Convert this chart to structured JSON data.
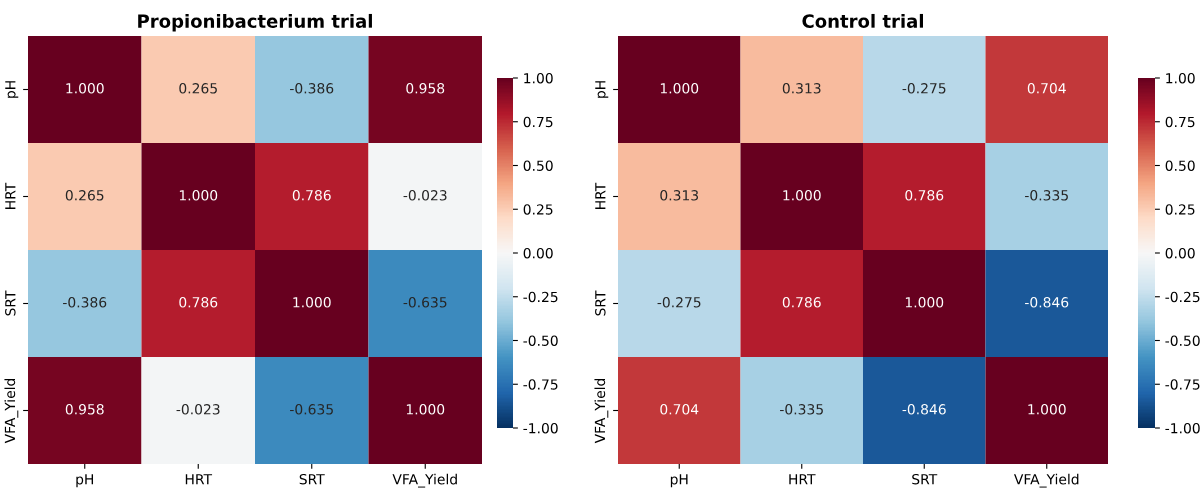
{
  "chart_data": [
    {
      "type": "heatmap",
      "title": "Propionibacterium trial",
      "categories": [
        "pH",
        "HRT",
        "SRT",
        "VFA_Yield"
      ],
      "y_categories": [
        "pH",
        "HRT",
        "SRT",
        "VFA_Yield"
      ],
      "cells": [
        [
          1.0,
          0.265,
          -0.386,
          0.958
        ],
        [
          0.265,
          1.0,
          0.786,
          -0.023
        ],
        [
          -0.386,
          0.786,
          1.0,
          -0.635
        ],
        [
          0.958,
          -0.023,
          -0.635,
          1.0
        ]
      ],
      "cell_labels": [
        [
          "1.000",
          "0.265",
          "-0.386",
          "0.958"
        ],
        [
          "0.265",
          "1.000",
          "0.786",
          "-0.023"
        ],
        [
          "-0.386",
          "0.786",
          "1.000",
          "-0.635"
        ],
        [
          "0.958",
          "-0.023",
          "-0.635",
          "1.000"
        ]
      ],
      "clim": [
        -1,
        1
      ],
      "cticks": [
        {
          "value": -1,
          "label": "-1.00"
        },
        {
          "value": -0.75,
          "label": "-0.75"
        },
        {
          "value": -0.5,
          "label": "-0.50"
        },
        {
          "value": -0.25,
          "label": "-0.25"
        },
        {
          "value": 0,
          "label": "0.00"
        },
        {
          "value": 0.25,
          "label": "0.25"
        },
        {
          "value": 0.5,
          "label": "0.50"
        },
        {
          "value": 0.75,
          "label": "0.75"
        },
        {
          "value": 1,
          "label": "1.00"
        }
      ]
    },
    {
      "type": "heatmap",
      "title": "Control trial",
      "categories": [
        "pH",
        "HRT",
        "SRT",
        "VFA_Yield"
      ],
      "y_categories": [
        "pH",
        "HRT",
        "SRT",
        "VFA_Yield"
      ],
      "cells": [
        [
          1.0,
          0.313,
          -0.275,
          0.704
        ],
        [
          0.313,
          1.0,
          0.786,
          -0.335
        ],
        [
          -0.275,
          0.786,
          1.0,
          -0.846
        ],
        [
          0.704,
          -0.335,
          -0.846,
          1.0
        ]
      ],
      "cell_labels": [
        [
          "1.000",
          "0.313",
          "-0.275",
          "0.704"
        ],
        [
          "0.313",
          "1.000",
          "0.786",
          "-0.335"
        ],
        [
          "-0.275",
          "0.786",
          "1.000",
          "-0.846"
        ],
        [
          "0.704",
          "-0.335",
          "-0.846",
          "1.000"
        ]
      ],
      "clim": [
        -1,
        1
      ],
      "cticks": [
        {
          "value": -1,
          "label": "-1.00"
        },
        {
          "value": -0.75,
          "label": "-0.75"
        },
        {
          "value": -0.5,
          "label": "-0.50"
        },
        {
          "value": -0.25,
          "label": "-0.25"
        },
        {
          "value": 0,
          "label": "0.00"
        },
        {
          "value": 0.25,
          "label": "0.25"
        },
        {
          "value": 0.5,
          "label": "0.50"
        },
        {
          "value": 0.75,
          "label": "0.75"
        },
        {
          "value": 1,
          "label": "1.00"
        }
      ]
    }
  ]
}
